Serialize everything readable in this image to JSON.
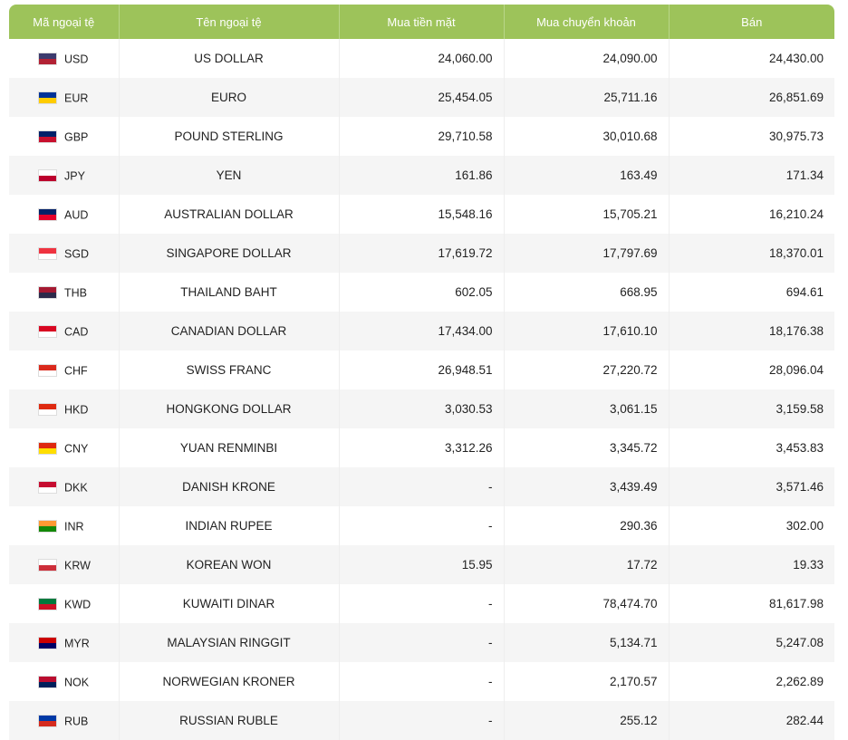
{
  "table": {
    "headers": [
      "Mã ngoại tệ",
      "Tên ngoại tệ",
      "Mua tiền mặt",
      "Mua chuyển khoản",
      "Bán"
    ],
    "rows": [
      {
        "code": "USD",
        "name": "US DOLLAR",
        "cash": "24,060.00",
        "transfer": "24,090.00",
        "sell": "24,430.00",
        "flag": "us-flag-icon",
        "c1": "#3c3b6e",
        "c2": "#b22234"
      },
      {
        "code": "EUR",
        "name": "EURO",
        "cash": "25,454.05",
        "transfer": "25,711.16",
        "sell": "26,851.69",
        "flag": "eu-flag-icon",
        "c1": "#003399",
        "c2": "#ffcc00"
      },
      {
        "code": "GBP",
        "name": "POUND STERLING",
        "cash": "29,710.58",
        "transfer": "30,010.68",
        "sell": "30,975.73",
        "flag": "uk-flag-icon",
        "c1": "#012169",
        "c2": "#c8102e"
      },
      {
        "code": "JPY",
        "name": "YEN",
        "cash": "161.86",
        "transfer": "163.49",
        "sell": "171.34",
        "flag": "japan-flag-icon",
        "c1": "#ffffff",
        "c2": "#bc002d"
      },
      {
        "code": "AUD",
        "name": "AUSTRALIAN DOLLAR",
        "cash": "15,548.16",
        "transfer": "15,705.21",
        "sell": "16,210.24",
        "flag": "australia-flag-icon",
        "c1": "#012169",
        "c2": "#e4002b"
      },
      {
        "code": "SGD",
        "name": "SINGAPORE DOLLAR",
        "cash": "17,619.72",
        "transfer": "17,797.69",
        "sell": "18,370.01",
        "flag": "singapore-flag-icon",
        "c1": "#ef3340",
        "c2": "#ffffff"
      },
      {
        "code": "THB",
        "name": "THAILAND BAHT",
        "cash": "602.05",
        "transfer": "668.95",
        "sell": "694.61",
        "flag": "thailand-flag-icon",
        "c1": "#a51931",
        "c2": "#2d2a4a"
      },
      {
        "code": "CAD",
        "name": "CANADIAN DOLLAR",
        "cash": "17,434.00",
        "transfer": "17,610.10",
        "sell": "18,176.38",
        "flag": "canada-flag-icon",
        "c1": "#d80621",
        "c2": "#ffffff"
      },
      {
        "code": "CHF",
        "name": "SWISS FRANC",
        "cash": "26,948.51",
        "transfer": "27,220.72",
        "sell": "28,096.04",
        "flag": "swiss-flag-icon",
        "c1": "#da291c",
        "c2": "#ffffff"
      },
      {
        "code": "HKD",
        "name": "HONGKONG DOLLAR",
        "cash": "3,030.53",
        "transfer": "3,061.15",
        "sell": "3,159.58",
        "flag": "hongkong-flag-icon",
        "c1": "#de2910",
        "c2": "#ffffff"
      },
      {
        "code": "CNY",
        "name": "YUAN RENMINBI",
        "cash": "3,312.26",
        "transfer": "3,345.72",
        "sell": "3,453.83",
        "flag": "china-flag-icon",
        "c1": "#de2910",
        "c2": "#ffde00"
      },
      {
        "code": "DKK",
        "name": "DANISH KRONE",
        "cash": "-",
        "transfer": "3,439.49",
        "sell": "3,571.46",
        "flag": "denmark-flag-icon",
        "c1": "#c60c30",
        "c2": "#ffffff"
      },
      {
        "code": "INR",
        "name": "INDIAN RUPEE",
        "cash": "-",
        "transfer": "290.36",
        "sell": "302.00",
        "flag": "india-flag-icon",
        "c1": "#ff9933",
        "c2": "#138808"
      },
      {
        "code": "KRW",
        "name": "KOREAN WON",
        "cash": "15.95",
        "transfer": "17.72",
        "sell": "19.33",
        "flag": "korea-flag-icon",
        "c1": "#ffffff",
        "c2": "#cd2e3a"
      },
      {
        "code": "KWD",
        "name": "KUWAITI DINAR",
        "cash": "-",
        "transfer": "78,474.70",
        "sell": "81,617.98",
        "flag": "kuwait-flag-icon",
        "c1": "#007a3d",
        "c2": "#ce1126"
      },
      {
        "code": "MYR",
        "name": "MALAYSIAN RINGGIT",
        "cash": "-",
        "transfer": "5,134.71",
        "sell": "5,247.08",
        "flag": "malaysia-flag-icon",
        "c1": "#cc0001",
        "c2": "#010066"
      },
      {
        "code": "NOK",
        "name": "NORWEGIAN KRONER",
        "cash": "-",
        "transfer": "2,170.57",
        "sell": "2,262.89",
        "flag": "norway-flag-icon",
        "c1": "#ba0c2f",
        "c2": "#00205b"
      },
      {
        "code": "RUB",
        "name": "RUSSIAN RUBLE",
        "cash": "-",
        "transfer": "255.12",
        "sell": "282.44",
        "flag": "russia-flag-icon",
        "c1": "#0039a6",
        "c2": "#d52b1e"
      }
    ]
  }
}
